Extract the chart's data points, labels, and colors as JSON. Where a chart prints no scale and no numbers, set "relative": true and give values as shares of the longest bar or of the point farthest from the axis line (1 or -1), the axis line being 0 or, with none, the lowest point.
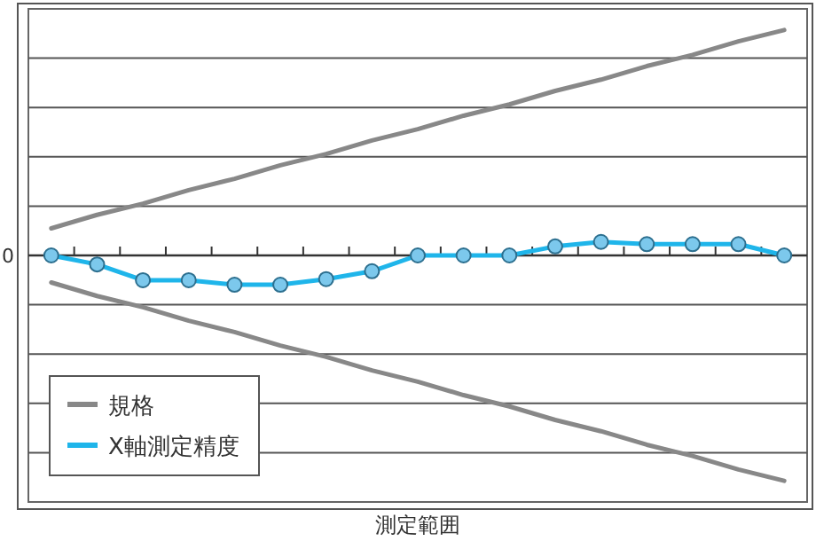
{
  "chart_data": {
    "type": "line",
    "xlabel": "測定範囲",
    "relative": true,
    "annotations": [
      "0"
    ],
    "grid": "y",
    "legend": "bottom left",
    "marker": "circle",
    "line_style": "solid",
    "categories": [
      null,
      null,
      null,
      null,
      null,
      null,
      null,
      null,
      null,
      null,
      null,
      null,
      null,
      null,
      null,
      null,
      null
    ],
    "series": [
      {
        "name": "規格",
        "color": "#888888",
        "marker": "none",
        "values": [
          0.12,
          0.18,
          0.23,
          0.29,
          0.34,
          0.4,
          0.45,
          0.51,
          0.56,
          0.62,
          0.67,
          0.73,
          0.78,
          0.84,
          0.89,
          0.95,
          1.0
        ]
      },
      {
        "color": "#888888",
        "marker": "none",
        "values": [
          -0.12,
          -0.18,
          -0.23,
          -0.29,
          -0.34,
          -0.4,
          -0.45,
          -0.51,
          -0.56,
          -0.62,
          -0.67,
          -0.73,
          -0.78,
          -0.84,
          -0.89,
          -0.95,
          -1.0
        ]
      },
      {
        "name": "X軸測定精度",
        "color": "#1fb5ea",
        "values": [
          0,
          -0.04,
          -0.11,
          -0.11,
          -0.13,
          -0.13,
          -0.105,
          -0.07,
          0,
          0,
          0,
          0.04,
          0.06,
          0.05,
          0.05,
          0.05,
          0
        ]
      }
    ]
  }
}
